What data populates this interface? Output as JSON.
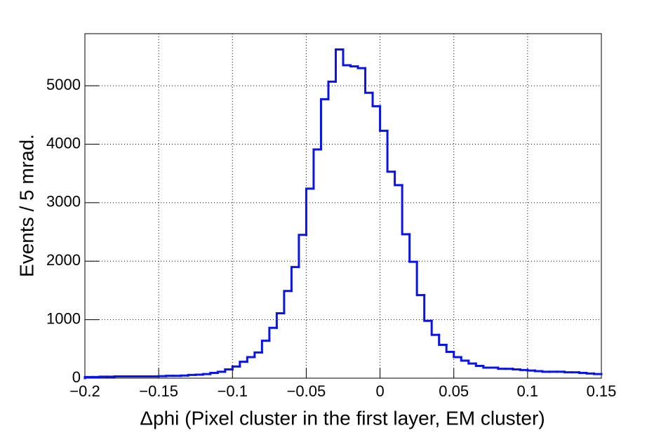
{
  "chart_data": {
    "type": "histogram",
    "xlabel": "Δphi (Pixel cluster in the first layer, EM cluster)",
    "ylabel": "Events / 5 mrad.",
    "color": "#0a14e6",
    "grid": true,
    "bins": [
      -0.2,
      -0.195,
      -0.19,
      -0.185,
      -0.18,
      -0.175,
      -0.17,
      -0.165,
      -0.16,
      -0.155,
      -0.15,
      -0.145,
      -0.14,
      -0.135,
      -0.13,
      -0.125,
      -0.12,
      -0.115,
      -0.11,
      -0.105,
      -0.1,
      -0.095,
      -0.09,
      -0.085,
      -0.08,
      -0.075,
      -0.07,
      -0.065,
      -0.06,
      -0.055,
      -0.05,
      -0.045,
      -0.04,
      -0.035,
      -0.03,
      -0.025,
      -0.02,
      -0.015,
      -0.01,
      -0.005,
      0,
      0.005,
      0.01,
      0.015,
      0.02,
      0.025,
      0.03,
      0.035,
      0.04,
      0.045,
      0.05,
      0.055,
      0.06,
      0.065,
      0.07,
      0.075,
      0.08,
      0.085,
      0.09,
      0.095,
      0.1,
      0.105,
      0.11,
      0.115,
      0.12,
      0.125,
      0.13,
      0.135,
      0.14,
      0.145,
      0.15
    ],
    "values": [
      20,
      20,
      25,
      25,
      30,
      30,
      30,
      30,
      30,
      30,
      35,
      40,
      40,
      45,
      55,
      60,
      70,
      90,
      110,
      150,
      200,
      280,
      360,
      440,
      640,
      860,
      1110,
      1490,
      1900,
      2450,
      3240,
      3910,
      4770,
      5070,
      5620,
      5350,
      5330,
      5300,
      4880,
      4650,
      4230,
      3530,
      3300,
      2460,
      1990,
      1420,
      980,
      740,
      570,
      450,
      360,
      300,
      250,
      210,
      180,
      180,
      160,
      160,
      150,
      140,
      130,
      120,
      110,
      110,
      110,
      100,
      100,
      90,
      80,
      70
    ],
    "xlim": [
      -0.2,
      0.15
    ],
    "xticks": [
      {
        "value": -0.2,
        "label": "−0.2"
      },
      {
        "value": -0.15,
        "label": "−0.15"
      },
      {
        "value": -0.1,
        "label": "−0.1"
      },
      {
        "value": -0.05,
        "label": "−0.05"
      },
      0,
      0.05,
      0.1,
      0.15
    ],
    "ylim": [
      0,
      5890
    ],
    "yticks": [
      0,
      1000,
      2000,
      3000,
      4000,
      5000
    ]
  }
}
